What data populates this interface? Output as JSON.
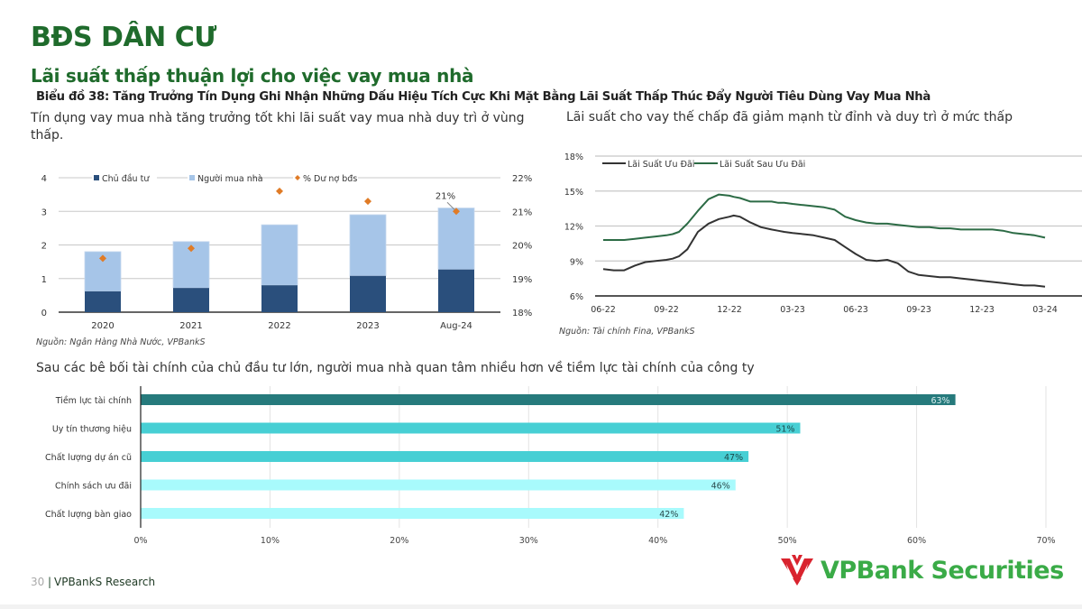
{
  "header": {
    "section_title": "BĐS DÂN CƯ",
    "subtitle": "Lãi suất thấp thuận lợi cho việc vay mua nhà",
    "figure_title": "Biểu đồ 38: Tăng Trưởng Tín Dụng Ghi Nhận Những Dấu Hiệu Tích Cực Khi Mặt Bằng Lãi Suất Thấp Thúc Đẩy Người Tiêu Dùng Vay Mua Nhà"
  },
  "descriptions": {
    "left": "Tín dụng vay mua nhà tăng trưởng tốt khi lãi suất vay mua nhà duy trì ở vùng thấp.",
    "right": "Lãi suất cho vay thế chấp đã giảm mạnh từ đỉnh và duy trì ở mức thấp",
    "bottom": "Sau các bê bối tài chính của chủ đầu tư lớn, người mua nhà quan tâm nhiều hơn về tiềm lực tài chính của công ty"
  },
  "sources": {
    "left": "Nguồn: Ngân Hàng Nhà Nước, VPBankS",
    "right": "Nguồn: Tài chính Fina, VPBankS"
  },
  "footer": {
    "page_number": "30",
    "separator": "|",
    "brand": "VPBankS Research",
    "logo_text": "VPBank Securities"
  },
  "colors": {
    "brand_green": "#1f6b2c",
    "logo_green": "#3aab47",
    "logo_red": "#d9232e",
    "dark_blue": "#2a4f7c",
    "light_blue": "#a6c5e8",
    "orange": "#e07b26",
    "line_dark": "#333333",
    "line_green": "#2c6b45",
    "bar_dark_teal": "#267a7c",
    "bar_teal": "#47cfd4",
    "bar_light_cyan": "#a8fafc"
  },
  "chart_data": [
    {
      "type": "bar",
      "stacked": true,
      "categories": [
        "2020",
        "2021",
        "2022",
        "2023",
        "Aug-24"
      ],
      "series": [
        {
          "name": "Chủ đầu tư",
          "values": [
            0.62,
            0.72,
            0.8,
            1.08,
            1.27
          ],
          "axis": "left"
        },
        {
          "name": "Người mua nhà",
          "values": [
            1.18,
            1.38,
            1.8,
            1.82,
            1.83
          ],
          "axis": "left"
        },
        {
          "name": "% Dư nợ bđs",
          "values": [
            19.6,
            19.9,
            21.6,
            21.3,
            21.0
          ],
          "axis": "right",
          "marker": "diamond"
        }
      ],
      "y_ticks": [
        "0",
        "1",
        "2",
        "3",
        "4"
      ],
      "y_right_ticks": [
        "18%",
        "19%",
        "20%",
        "21%",
        "22%"
      ],
      "ylim": [
        0,
        4
      ],
      "y_right_lim": [
        18,
        22
      ],
      "annotations": [
        {
          "category": "Aug-24",
          "text": "21%"
        }
      ],
      "legend": "top",
      "grid": true
    },
    {
      "type": "line",
      "x_ticks": [
        "06-22",
        "09-22",
        "12-22",
        "03-23",
        "06-23",
        "09-23",
        "12-23",
        "03-24"
      ],
      "y_ticks": [
        "6%",
        "9%",
        "12%",
        "15%",
        "18%"
      ],
      "ylim": [
        6,
        18
      ],
      "x": [
        0,
        0.5,
        1,
        1.5,
        2,
        2.5,
        3,
        3.3,
        3.6,
        4,
        4.5,
        5,
        5.5,
        6,
        6.2,
        6.5,
        7,
        7.5,
        8,
        8.3,
        8.6,
        9,
        9.5,
        10,
        10.5,
        11,
        11.5,
        12,
        12.5,
        13,
        13.5,
        14,
        14.5,
        15,
        15.5,
        16,
        16.5,
        17,
        17.5,
        18,
        18.5,
        19,
        19.5,
        20,
        20.5,
        21
      ],
      "series": [
        {
          "name": "Lãi Suất Ưu Đãi",
          "values": [
            8.3,
            8.2,
            8.2,
            8.6,
            8.9,
            9.0,
            9.1,
            9.2,
            9.4,
            10.0,
            11.5,
            12.2,
            12.6,
            12.8,
            12.9,
            12.8,
            12.3,
            11.9,
            11.7,
            11.6,
            11.5,
            11.4,
            11.3,
            11.2,
            11.0,
            10.8,
            10.2,
            9.6,
            9.1,
            9.0,
            9.1,
            8.8,
            8.1,
            7.8,
            7.7,
            7.6,
            7.6,
            7.5,
            7.4,
            7.3,
            7.2,
            7.1,
            7.0,
            6.9,
            6.9,
            6.8
          ]
        },
        {
          "name": "Lãi Suất Sau Ưu Đãi",
          "values": [
            10.8,
            10.8,
            10.8,
            10.9,
            11.0,
            11.1,
            11.2,
            11.3,
            11.5,
            12.2,
            13.3,
            14.3,
            14.7,
            14.6,
            14.5,
            14.4,
            14.1,
            14.1,
            14.1,
            14.0,
            14.0,
            13.9,
            13.8,
            13.7,
            13.6,
            13.4,
            12.8,
            12.5,
            12.3,
            12.2,
            12.2,
            12.1,
            12.0,
            11.9,
            11.9,
            11.8,
            11.8,
            11.7,
            11.7,
            11.7,
            11.7,
            11.6,
            11.4,
            11.3,
            11.2,
            11.0
          ]
        }
      ],
      "legend": "top-left",
      "grid": true
    },
    {
      "type": "bar",
      "orientation": "horizontal",
      "categories": [
        "Tiềm lực tài chính",
        "Uy tín thương hiệu",
        "Chất lượng dự án cũ",
        "Chính sách ưu đãi",
        "Chất lượng bàn giao"
      ],
      "values": [
        63,
        51,
        47,
        46,
        42
      ],
      "labels": [
        "63%",
        "51%",
        "47%",
        "46%",
        "42%"
      ],
      "x_ticks": [
        "0%",
        "10%",
        "20%",
        "30%",
        "40%",
        "50%",
        "60%",
        "70%"
      ],
      "xlim": [
        0,
        70
      ],
      "grid": true
    }
  ]
}
